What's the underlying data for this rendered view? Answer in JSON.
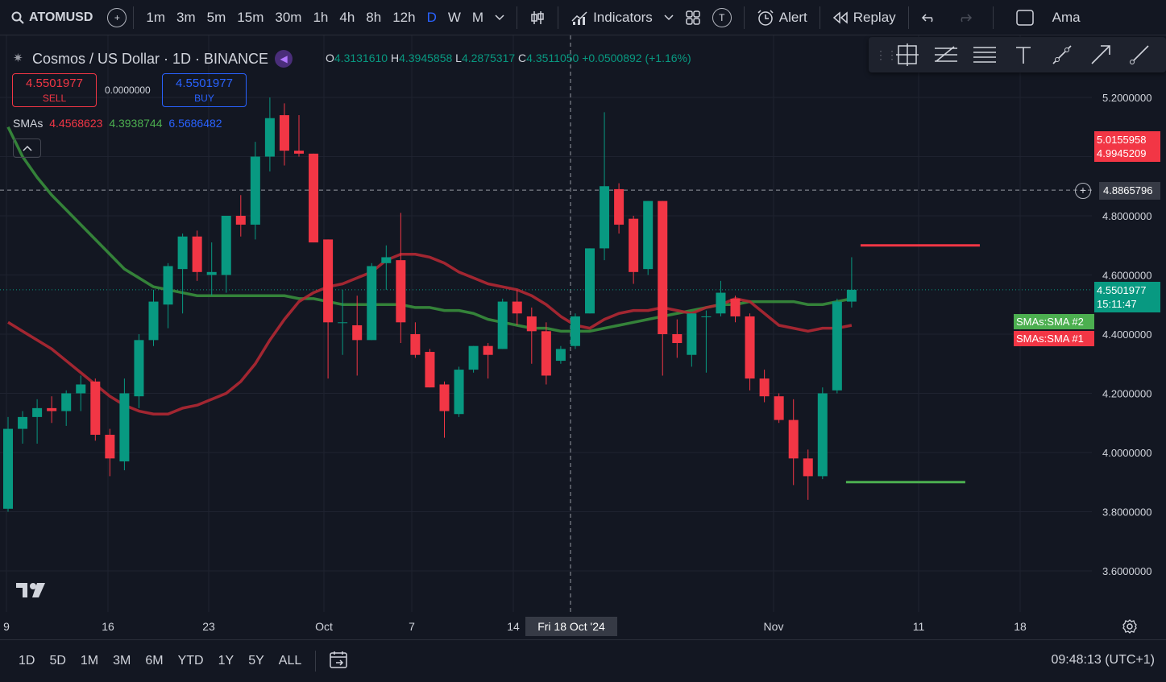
{
  "topbar": {
    "symbol": "ATOMUSD",
    "intervals": [
      "1m",
      "3m",
      "5m",
      "15m",
      "30m",
      "1h",
      "4h",
      "8h",
      "12h",
      "D",
      "W",
      "M"
    ],
    "active_interval": "D",
    "indicators_label": "Indicators",
    "alert_label": "Alert",
    "replay_label": "Replay",
    "cut_label": "Ama",
    "t_badge": "T"
  },
  "legend": {
    "title": "Cosmos / US Dollar · 1D · BINANCE",
    "open_key": "O",
    "open": "4.3131610",
    "high_key": "H",
    "high": "4.3945858",
    "low_key": "L",
    "low": "4.2875317",
    "close_key": "C",
    "close": "4.3511050",
    "change": "+0.0500892 (+1.16%)",
    "sell_price": "4.5501977",
    "sell_label": "SELL",
    "buy_price": "4.5501977",
    "buy_label": "BUY",
    "spread": "0.0000000",
    "sma_label": "SMAs",
    "sma_values": [
      "4.4568623",
      "4.3938744",
      "6.5686482"
    ]
  },
  "price_scale": {
    "labels": [
      "5.2000000",
      "4.8000000",
      "4.6000000",
      "4.4000000",
      "4.2000000",
      "4.0000000",
      "3.8000000",
      "3.6000000"
    ],
    "tag_red_top": "5.0155958",
    "tag_red_bottom": "4.9945209",
    "crosshair_price": "4.8865796",
    "last_price": "4.5501977",
    "countdown": "15:11:47",
    "sma2_tag": "SMAs:SMA #2",
    "sma1_tag": "SMAs:SMA #1"
  },
  "time_axis": {
    "labels": [
      "9",
      "16",
      "23",
      "Oct",
      "7",
      "14",
      "Nov",
      "11",
      "18"
    ],
    "crosshair_date": "Fri 18 Oct '24"
  },
  "bottombar": {
    "ranges": [
      "1D",
      "5D",
      "1M",
      "3M",
      "6M",
      "YTD",
      "1Y",
      "5Y",
      "ALL"
    ],
    "clock": "09:48:13 (UTC+1)"
  },
  "colors": {
    "up": "#089981",
    "down": "#f23645",
    "sma1": "#b22833",
    "sma2": "#388e3c",
    "accent": "#2962ff"
  },
  "chart_data": {
    "type": "candlestick",
    "title": "Cosmos / US Dollar · 1D · BINANCE",
    "y_range": [
      3.5,
      5.35
    ],
    "candles": [
      {
        "o": 3.81,
        "h": 4.12,
        "l": 3.8,
        "c": 4.08
      },
      {
        "o": 4.08,
        "h": 4.14,
        "l": 4.03,
        "c": 4.12
      },
      {
        "o": 4.12,
        "h": 4.18,
        "l": 4.03,
        "c": 4.15
      },
      {
        "o": 4.15,
        "h": 4.19,
        "l": 4.1,
        "c": 4.14
      },
      {
        "o": 4.14,
        "h": 4.21,
        "l": 4.09,
        "c": 4.2
      },
      {
        "o": 4.2,
        "h": 4.26,
        "l": 4.14,
        "c": 4.23
      },
      {
        "o": 4.24,
        "h": 4.25,
        "l": 4.04,
        "c": 4.06
      },
      {
        "o": 4.06,
        "h": 4.08,
        "l": 3.92,
        "c": 3.98
      },
      {
        "o": 3.97,
        "h": 4.25,
        "l": 3.94,
        "c": 4.2
      },
      {
        "o": 4.19,
        "h": 4.4,
        "l": 4.15,
        "c": 4.38
      },
      {
        "o": 4.38,
        "h": 4.55,
        "l": 4.36,
        "c": 4.51
      },
      {
        "o": 4.5,
        "h": 4.64,
        "l": 4.42,
        "c": 4.63
      },
      {
        "o": 4.62,
        "h": 4.74,
        "l": 4.47,
        "c": 4.73
      },
      {
        "o": 4.73,
        "h": 4.75,
        "l": 4.58,
        "c": 4.61
      },
      {
        "o": 4.6,
        "h": 4.71,
        "l": 4.53,
        "c": 4.61
      },
      {
        "o": 4.6,
        "h": 4.8,
        "l": 4.54,
        "c": 4.8
      },
      {
        "o": 4.8,
        "h": 4.87,
        "l": 4.73,
        "c": 4.77
      },
      {
        "o": 4.77,
        "h": 5.05,
        "l": 4.72,
        "c": 5.0
      },
      {
        "o": 5.0,
        "h": 5.2,
        "l": 4.95,
        "c": 5.13
      },
      {
        "o": 5.14,
        "h": 5.18,
        "l": 4.97,
        "c": 5.02
      },
      {
        "o": 5.02,
        "h": 5.14,
        "l": 5.0,
        "c": 5.01
      },
      {
        "o": 5.01,
        "h": 5.01,
        "l": 4.71,
        "c": 4.71
      },
      {
        "o": 4.72,
        "h": 4.72,
        "l": 4.25,
        "c": 4.44
      },
      {
        "o": 4.44,
        "h": 4.55,
        "l": 4.33,
        "c": 4.44
      },
      {
        "o": 4.43,
        "h": 4.53,
        "l": 4.26,
        "c": 4.38
      },
      {
        "o": 4.38,
        "h": 4.64,
        "l": 4.38,
        "c": 4.63
      },
      {
        "o": 4.64,
        "h": 4.7,
        "l": 4.55,
        "c": 4.66
      },
      {
        "o": 4.65,
        "h": 4.81,
        "l": 4.37,
        "c": 4.44
      },
      {
        "o": 4.4,
        "h": 4.44,
        "l": 4.32,
        "c": 4.33
      },
      {
        "o": 4.34,
        "h": 4.35,
        "l": 4.22,
        "c": 4.22
      },
      {
        "o": 4.23,
        "h": 4.24,
        "l": 4.05,
        "c": 4.14
      },
      {
        "o": 4.13,
        "h": 4.29,
        "l": 4.12,
        "c": 4.28
      },
      {
        "o": 4.28,
        "h": 4.36,
        "l": 4.27,
        "c": 4.36
      },
      {
        "o": 4.36,
        "h": 4.37,
        "l": 4.25,
        "c": 4.33
      },
      {
        "o": 4.35,
        "h": 4.52,
        "l": 4.35,
        "c": 4.51
      },
      {
        "o": 4.51,
        "h": 4.55,
        "l": 4.43,
        "c": 4.47
      },
      {
        "o": 4.46,
        "h": 4.49,
        "l": 4.3,
        "c": 4.41
      },
      {
        "o": 4.41,
        "h": 4.44,
        "l": 4.23,
        "c": 4.26
      },
      {
        "o": 4.31,
        "h": 4.36,
        "l": 4.3,
        "c": 4.35
      },
      {
        "o": 4.36,
        "h": 4.47,
        "l": 4.35,
        "c": 4.46
      },
      {
        "o": 4.47,
        "h": 4.69,
        "l": 4.47,
        "c": 4.69
      },
      {
        "o": 4.69,
        "h": 5.15,
        "l": 4.65,
        "c": 4.9
      },
      {
        "o": 4.89,
        "h": 4.91,
        "l": 4.74,
        "c": 4.77
      },
      {
        "o": 4.79,
        "h": 4.8,
        "l": 4.57,
        "c": 4.61
      },
      {
        "o": 4.62,
        "h": 4.85,
        "l": 4.6,
        "c": 4.85
      },
      {
        "o": 4.85,
        "h": 4.85,
        "l": 4.26,
        "c": 4.4
      },
      {
        "o": 4.4,
        "h": 4.45,
        "l": 4.32,
        "c": 4.37
      },
      {
        "o": 4.33,
        "h": 4.47,
        "l": 4.29,
        "c": 4.47
      },
      {
        "o": 4.46,
        "h": 4.48,
        "l": 4.27,
        "c": 4.46
      },
      {
        "o": 4.47,
        "h": 4.58,
        "l": 4.46,
        "c": 4.54
      },
      {
        "o": 4.52,
        "h": 4.53,
        "l": 4.44,
        "c": 4.46
      },
      {
        "o": 4.46,
        "h": 4.47,
        "l": 4.21,
        "c": 4.25
      },
      {
        "o": 4.25,
        "h": 4.28,
        "l": 4.17,
        "c": 4.19
      },
      {
        "o": 4.19,
        "h": 4.2,
        "l": 4.1,
        "c": 4.11
      },
      {
        "o": 4.11,
        "h": 4.18,
        "l": 3.89,
        "c": 3.98
      },
      {
        "o": 3.98,
        "h": 4.01,
        "l": 3.84,
        "c": 3.92
      },
      {
        "o": 3.92,
        "h": 4.22,
        "l": 3.91,
        "c": 4.2
      },
      {
        "o": 4.21,
        "h": 4.52,
        "l": 4.2,
        "c": 4.51
      },
      {
        "o": 4.51,
        "h": 4.66,
        "l": 4.49,
        "c": 4.55
      }
    ],
    "sma1": [
      4.44,
      4.41,
      4.38,
      4.35,
      4.31,
      4.27,
      4.23,
      4.19,
      4.16,
      4.14,
      4.13,
      4.13,
      4.15,
      4.16,
      4.18,
      4.2,
      4.24,
      4.3,
      4.38,
      4.45,
      4.51,
      4.54,
      4.56,
      4.57,
      4.59,
      4.61,
      4.65,
      4.67,
      4.67,
      4.66,
      4.64,
      4.61,
      4.59,
      4.57,
      4.56,
      4.55,
      4.53,
      4.5,
      4.46,
      4.43,
      4.42,
      4.45,
      4.47,
      4.48,
      4.48,
      4.49,
      4.48,
      4.47,
      4.49,
      4.5,
      4.52,
      4.51,
      4.47,
      4.43,
      4.42,
      4.41,
      4.42,
      4.42,
      4.43
    ],
    "sma2": [
      5.1,
      5.0,
      4.93,
      4.87,
      4.82,
      4.77,
      4.72,
      4.67,
      4.62,
      4.59,
      4.56,
      4.55,
      4.54,
      4.53,
      4.53,
      4.53,
      4.53,
      4.53,
      4.53,
      4.53,
      4.52,
      4.52,
      4.51,
      4.5,
      4.5,
      4.5,
      4.5,
      4.5,
      4.49,
      4.49,
      4.48,
      4.48,
      4.47,
      4.45,
      4.44,
      4.43,
      4.42,
      4.42,
      4.41,
      4.41,
      4.41,
      4.42,
      4.43,
      4.44,
      4.45,
      4.46,
      4.47,
      4.48,
      4.49,
      4.5,
      4.5,
      4.51,
      4.51,
      4.51,
      4.51,
      4.5,
      4.5,
      4.51,
      4.52
    ],
    "x_labels": [
      "9",
      "16",
      "23",
      "Oct",
      "7",
      "14",
      "Nov",
      "11",
      "18"
    ],
    "y_labels": [
      "5.2000000",
      "4.8000000",
      "4.6000000",
      "4.4000000",
      "4.2000000",
      "4.0000000",
      "3.8000000",
      "3.6000000"
    ],
    "horizontal_lines": [
      {
        "color": "red",
        "price": 4.7,
        "span_bars": [
          59,
          67
        ]
      },
      {
        "color": "green",
        "price": 3.9,
        "span_bars": [
          58,
          66
        ]
      }
    ],
    "crosshair": {
      "price": 4.8865796,
      "date": "Fri 18 Oct '24"
    }
  }
}
